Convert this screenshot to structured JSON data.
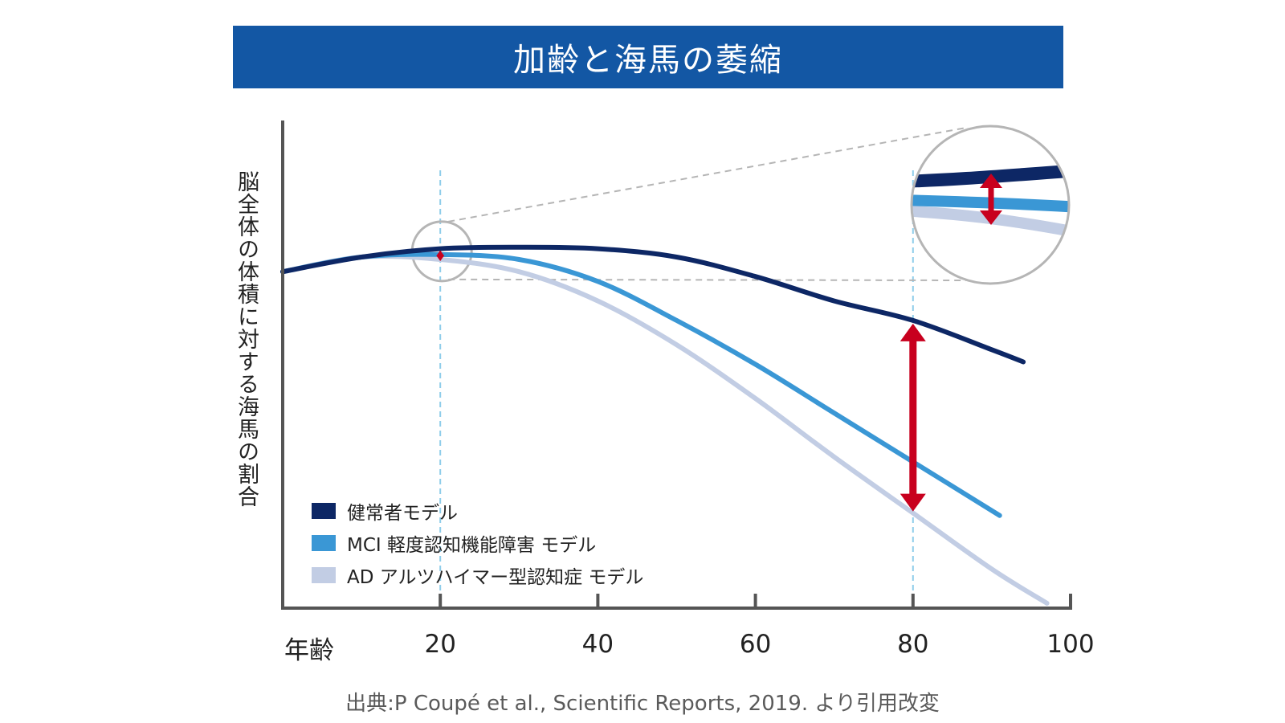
{
  "title": "加齢と海馬の萎縮",
  "source": "出典:P Coupé et al., Scientific Reports, 2019. より引用改変",
  "colors": {
    "title_bg": "#1357a4",
    "healthy": "#0d2765",
    "mci": "#3a97d5",
    "ad": "#c2cde4",
    "arrow": "#c8001e",
    "guide": "#8fcdea",
    "zoom": "#b5b5b5",
    "axis": "#555555"
  },
  "chart_data": {
    "type": "line",
    "title": "加齢と海馬の萎縮",
    "xlabel": "年齢",
    "ylabel": "脳全体の体積に対する海馬の割合",
    "xlim": [
      0,
      100
    ],
    "ylim": [
      0,
      1
    ],
    "y_ticks_shown": false,
    "x_ticks": [
      20,
      40,
      60,
      80,
      100
    ],
    "x_tick_labels": [
      "20",
      "40",
      "60",
      "80",
      "100"
    ],
    "legend_position": "bottom-left",
    "series": [
      {
        "name": "健常者モデル",
        "color": "#0d2765",
        "x": [
          0,
          10,
          20,
          30,
          40,
          50,
          60,
          70,
          80,
          90,
          94
        ],
        "y": [
          0.69,
          0.72,
          0.737,
          0.74,
          0.737,
          0.72,
          0.68,
          0.63,
          0.59,
          0.53,
          0.505
        ]
      },
      {
        "name": "MCI 軽度認知機能障害 モデル",
        "color": "#3a97d5",
        "x": [
          0,
          10,
          20,
          30,
          40,
          50,
          60,
          70,
          80,
          91
        ],
        "y": [
          0.69,
          0.72,
          0.725,
          0.715,
          0.67,
          0.59,
          0.5,
          0.4,
          0.3,
          0.19
        ]
      },
      {
        "name": "AD アルツハイマー型認知症 モデル",
        "color": "#c2cde4",
        "x": [
          0,
          10,
          20,
          30,
          40,
          50,
          60,
          70,
          80,
          90,
          97
        ],
        "y": [
          0.69,
          0.72,
          0.715,
          0.69,
          0.63,
          0.54,
          0.43,
          0.31,
          0.195,
          0.08,
          0.01
        ]
      }
    ],
    "annotations": [
      {
        "type": "double-arrow",
        "x": 20,
        "from": 0.737,
        "to": 0.715,
        "label": ""
      },
      {
        "type": "double-arrow",
        "x": 80,
        "from": 0.59,
        "to": 0.195,
        "label": ""
      },
      {
        "type": "vline-dashed",
        "x": 20
      },
      {
        "type": "vline-dashed",
        "x": 80
      },
      {
        "type": "zoom-inset",
        "x": 20,
        "of": "age 20 region"
      }
    ]
  }
}
